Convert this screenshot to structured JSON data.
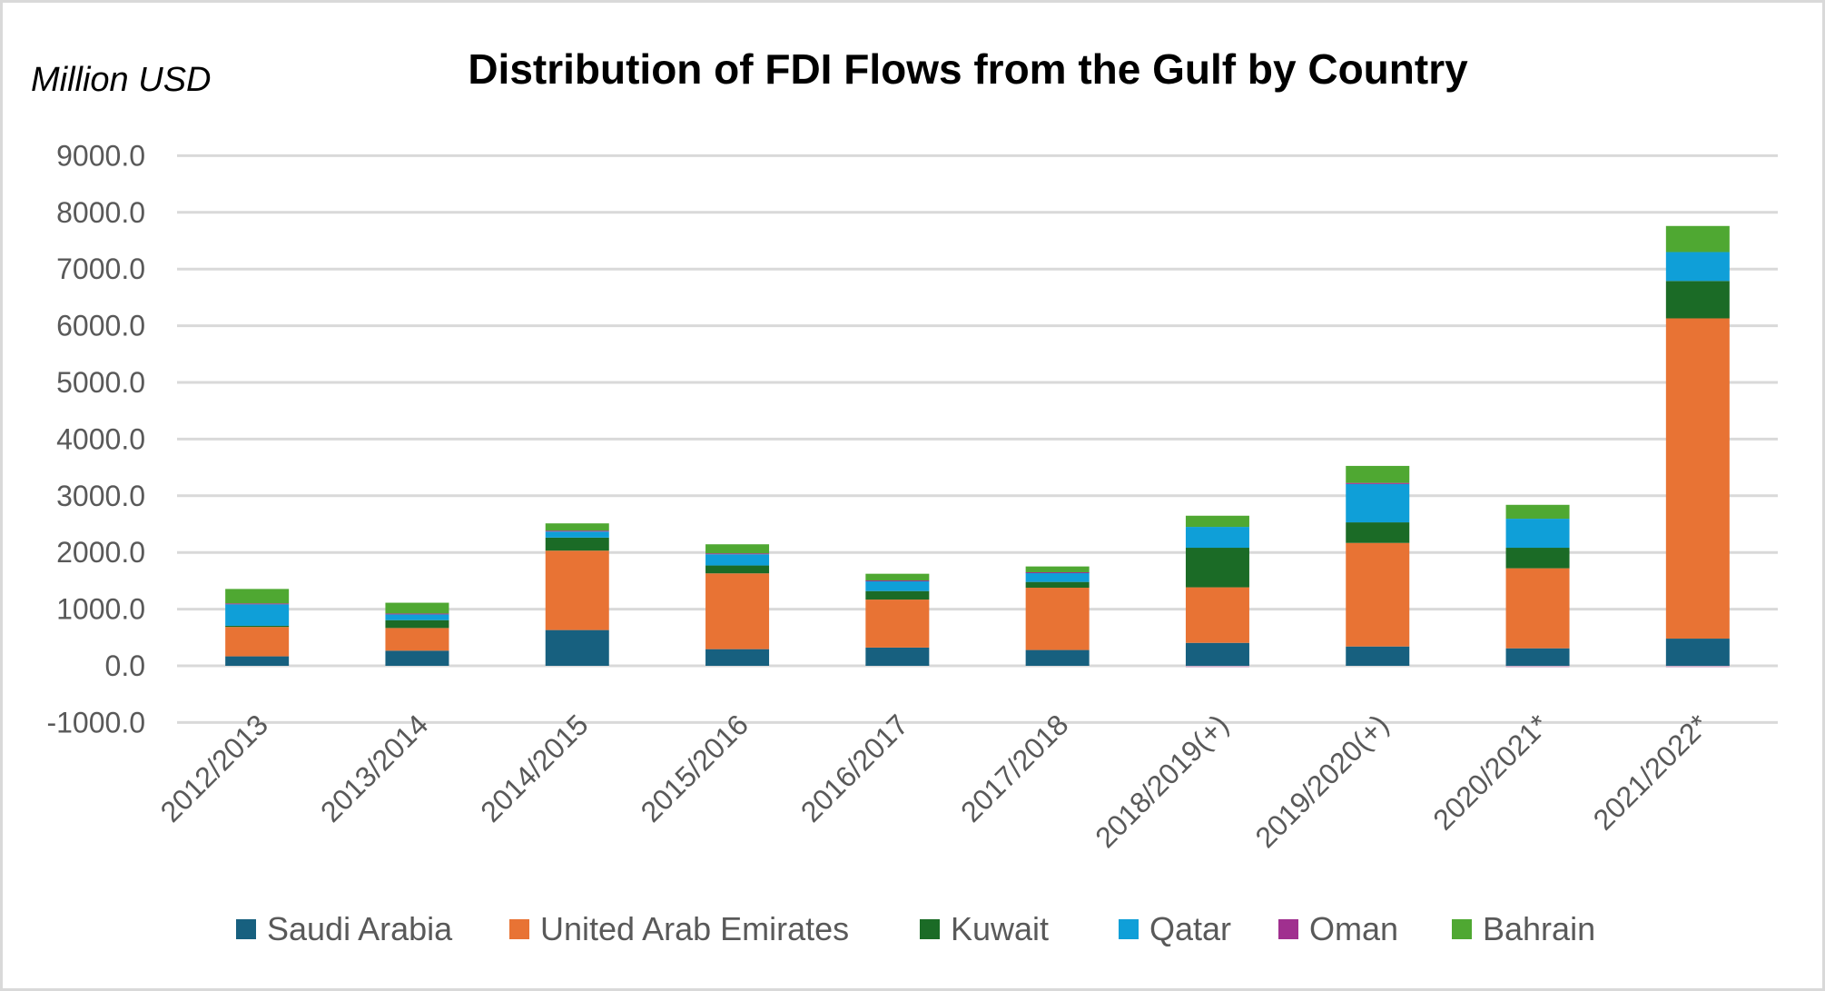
{
  "chart_data": {
    "type": "bar",
    "stacked": true,
    "title": "Distribution of FDI Flows from the Gulf by Country",
    "ylabel": "Million USD",
    "xlabel": "",
    "ylim": [
      -1000,
      9000
    ],
    "yticks": [
      9000,
      8000,
      7000,
      6000,
      5000,
      4000,
      3000,
      2000,
      1000,
      0,
      -1000
    ],
    "ytick_labels": [
      "9000.0",
      "8000.0",
      "7000.0",
      "6000.0",
      "5000.0",
      "4000.0",
      "3000.0",
      "2000.0",
      "1000.0",
      "0.0",
      "-1000.0"
    ],
    "grid": true,
    "legend_position": "bottom",
    "categories": [
      "2012/2013",
      "2013/2014",
      "2014/2015",
      "2015/2016",
      "2016/2017",
      "2017/2018",
      "2018/2019(+)",
      "2019/2020(+)",
      "2020/2021*",
      "2021/2022*"
    ],
    "series": [
      {
        "name": "Saudi Arabia",
        "color": "#17607f",
        "values": [
          167,
          267,
          631,
          294,
          322,
          279,
          405,
          341,
          309,
          480
        ]
      },
      {
        "name": "United Arab Emirates",
        "color": "#e87334",
        "values": [
          519,
          400,
          1401,
          1337,
          847,
          1099,
          980,
          1827,
          1412,
          5650
        ]
      },
      {
        "name": "Kuwait",
        "color": "#1b6b26",
        "values": [
          20,
          139,
          230,
          139,
          150,
          102,
          698,
          363,
          362,
          660
        ]
      },
      {
        "name": "Qatar",
        "color": "#0f9fd8",
        "values": [
          380,
          102,
          107,
          198,
          182,
          166,
          368,
          676,
          512,
          510
        ]
      },
      {
        "name": "Oman",
        "color": "#a0308f",
        "values": [
          15,
          15,
          16,
          16,
          5,
          5,
          -30,
          20,
          -30,
          -30
        ]
      },
      {
        "name": "Bahrain",
        "color": "#4fa832",
        "values": [
          255,
          190,
          128,
          160,
          118,
          102,
          197,
          300,
          245,
          460
        ]
      }
    ]
  }
}
